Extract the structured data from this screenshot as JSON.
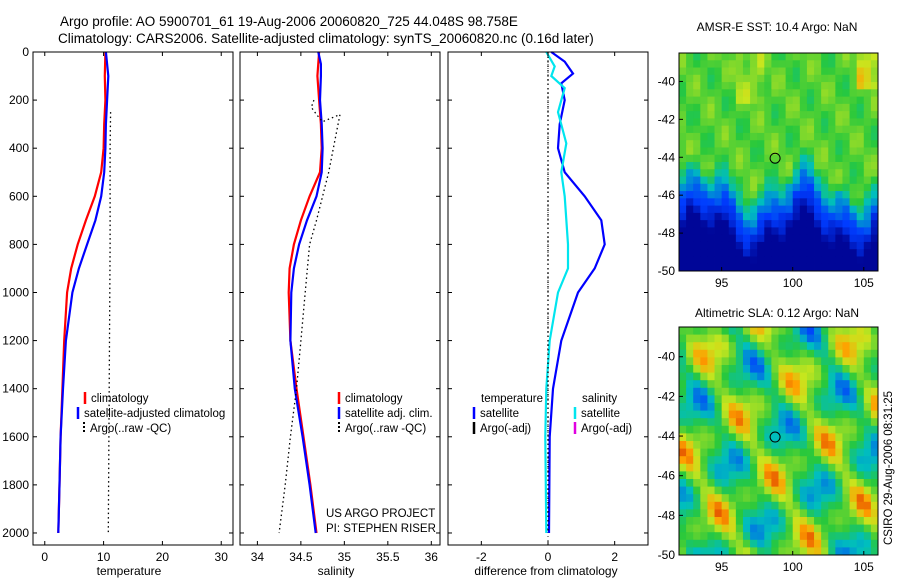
{
  "header": {
    "line1": "Argo profile: AO 5900701_61 19-Aug-2006 20060820_725 44.048S 98.758E",
    "line2": "Climatology: CARS2006. Satellite-adjusted climatology: synTS_20060820.nc (0.16d later)"
  },
  "side_stamp": "CSIRO 29-Aug-2006 08:31:25",
  "colors": {
    "red": "#ff0000",
    "blue": "#0000ff",
    "cyan": "#00e5ee",
    "magenta": "#e000e0",
    "black": "#000000"
  },
  "chart_data": [
    {
      "id": "temperature",
      "type": "line",
      "xlabel": "temperature",
      "xlim": [
        -2,
        32
      ],
      "ylim": [
        2050,
        0
      ],
      "xticks": [
        0,
        10,
        20,
        30
      ],
      "yticks": [
        0,
        200,
        400,
        600,
        800,
        1000,
        1200,
        1400,
        1600,
        1800,
        2000
      ],
      "legend_entries": [
        "climatology",
        "satellite-adjusted climatolog",
        "Argo(..raw -QC)"
      ],
      "series": [
        {
          "name": "climatology",
          "color": "red",
          "style": "solid",
          "points": [
            [
              10.3,
              0
            ],
            [
              10.2,
              100
            ],
            [
              10.3,
              200
            ],
            [
              10.1,
              300
            ],
            [
              10,
              400
            ],
            [
              9.6,
              500
            ],
            [
              8.5,
              600
            ],
            [
              7,
              700
            ],
            [
              5.6,
              800
            ],
            [
              4.5,
              900
            ],
            [
              3.8,
              1000
            ],
            [
              3.3,
              1200
            ],
            [
              3,
              1400
            ],
            [
              2.7,
              1600
            ],
            [
              2.5,
              1800
            ],
            [
              2.3,
              2000
            ]
          ]
        },
        {
          "name": "satellite-adjusted climatolog",
          "color": "blue",
          "style": "solid",
          "points": [
            [
              10.4,
              0
            ],
            [
              10.8,
              100
            ],
            [
              10.6,
              200
            ],
            [
              10.4,
              300
            ],
            [
              10.3,
              400
            ],
            [
              10.1,
              500
            ],
            [
              9.6,
              600
            ],
            [
              8.6,
              700
            ],
            [
              7.2,
              800
            ],
            [
              5.8,
              900
            ],
            [
              4.7,
              1000
            ],
            [
              3.6,
              1200
            ],
            [
              3.1,
              1400
            ],
            [
              2.7,
              1600
            ],
            [
              2.5,
              1800
            ],
            [
              2.3,
              2000
            ]
          ]
        },
        {
          "name": "Argo(..raw -QC)",
          "color": "black",
          "style": "dotted",
          "points": [
            [
              11.2,
              250
            ],
            [
              11.1,
              400
            ],
            [
              11.1,
              800
            ],
            [
              11,
              1200
            ],
            [
              10.9,
              1600
            ],
            [
              10.8,
              2000
            ]
          ]
        }
      ]
    },
    {
      "id": "salinity",
      "type": "line",
      "xlabel": "salinity",
      "xlim": [
        33.8,
        36.1
      ],
      "ylim": [
        2050,
        0
      ],
      "xticks": [
        34,
        34.5,
        35,
        35.5,
        36
      ],
      "yticks": [
        0,
        200,
        400,
        600,
        800,
        1000,
        1200,
        1400,
        1600,
        1800,
        2000
      ],
      "legend_entries": [
        "climatology",
        "satellite adj. clim.",
        "Argo(..raw -QC)"
      ],
      "annotations": [
        "US ARGO PROJECT",
        "PI: STEPHEN RISER"
      ],
      "series": [
        {
          "name": "climatology",
          "color": "red",
          "style": "solid",
          "points": [
            [
              34.71,
              0
            ],
            [
              34.69,
              100
            ],
            [
              34.71,
              200
            ],
            [
              34.73,
              300
            ],
            [
              34.74,
              400
            ],
            [
              34.72,
              500
            ],
            [
              34.6,
              600
            ],
            [
              34.5,
              700
            ],
            [
              34.42,
              800
            ],
            [
              34.37,
              900
            ],
            [
              34.36,
              1000
            ],
            [
              34.38,
              1200
            ],
            [
              34.45,
              1400
            ],
            [
              34.53,
              1600
            ],
            [
              34.61,
              1800
            ],
            [
              34.68,
              2000
            ]
          ]
        },
        {
          "name": "satellite adj. clim.",
          "color": "blue",
          "style": "solid",
          "points": [
            [
              34.7,
              0
            ],
            [
              34.73,
              50
            ],
            [
              34.73,
              100
            ],
            [
              34.72,
              200
            ],
            [
              34.74,
              300
            ],
            [
              34.75,
              400
            ],
            [
              34.74,
              500
            ],
            [
              34.68,
              600
            ],
            [
              34.57,
              700
            ],
            [
              34.48,
              800
            ],
            [
              34.42,
              900
            ],
            [
              34.39,
              1000
            ],
            [
              34.38,
              1200
            ],
            [
              34.43,
              1400
            ],
            [
              34.52,
              1600
            ],
            [
              34.6,
              1800
            ],
            [
              34.67,
              2000
            ]
          ]
        },
        {
          "name": "Argo(..raw -QC)",
          "color": "black",
          "style": "dotted",
          "points": [
            [
              34.65,
              200
            ],
            [
              34.62,
              230
            ],
            [
              34.68,
              260
            ],
            [
              34.75,
              290
            ],
            [
              34.95,
              260
            ],
            [
              34.9,
              350
            ],
            [
              34.82,
              500
            ],
            [
              34.75,
              600
            ],
            [
              34.68,
              700
            ],
            [
              34.6,
              800
            ],
            [
              34.55,
              1000
            ],
            [
              34.5,
              1200
            ],
            [
              34.45,
              1400
            ],
            [
              34.38,
              1600
            ],
            [
              34.32,
              1800
            ],
            [
              34.25,
              2000
            ]
          ]
        }
      ]
    },
    {
      "id": "difference",
      "type": "line",
      "xlabel": "difference from climatology",
      "xlim": [
        -3,
        3
      ],
      "ylim": [
        2050,
        0
      ],
      "xticks": [
        -2,
        0,
        2
      ],
      "yticks": [
        0,
        200,
        400,
        600,
        800,
        1000,
        1200,
        1400,
        1600,
        1800,
        2000
      ],
      "legend_headers": [
        "temperature",
        "salinity"
      ],
      "legend_entries": [
        "satellite",
        "Argo(-adj)",
        "satellite",
        "Argo(-adj)"
      ],
      "series": [
        {
          "name": "satellite",
          "group": "temperature",
          "color": "blue",
          "style": "solid",
          "points": [
            [
              0.1,
              0
            ],
            [
              0.5,
              40
            ],
            [
              0.75,
              90
            ],
            [
              0.4,
              130
            ],
            [
              0.5,
              200
            ],
            [
              0.35,
              300
            ],
            [
              0.3,
              400
            ],
            [
              0.5,
              500
            ],
            [
              1.1,
              600
            ],
            [
              1.6,
              700
            ],
            [
              1.7,
              800
            ],
            [
              1.4,
              900
            ],
            [
              0.9,
              1000
            ],
            [
              0.4,
              1200
            ],
            [
              0.15,
              1400
            ],
            [
              0.05,
              1600
            ],
            [
              0.03,
              2000
            ]
          ]
        },
        {
          "name": "satellite",
          "group": "salinity",
          "color": "cyan",
          "style": "solid",
          "points": [
            [
              -0.05,
              0
            ],
            [
              0.2,
              60
            ],
            [
              0.1,
              100
            ],
            [
              0.5,
              150
            ],
            [
              0.3,
              250
            ],
            [
              0.55,
              380
            ],
            [
              0.4,
              500
            ],
            [
              0.5,
              600
            ],
            [
              0.6,
              800
            ],
            [
              0.6,
              900
            ],
            [
              0.3,
              1000
            ],
            [
              0.05,
              1200
            ],
            [
              -0.05,
              1400
            ],
            [
              -0.08,
              1600
            ],
            [
              -0.05,
              2000
            ]
          ]
        },
        {
          "name": "Argo(-adj)",
          "group": "temperature",
          "color": "black",
          "style": "dotted",
          "points": [
            [
              0,
              0
            ],
            [
              0,
              2000
            ]
          ]
        }
      ]
    },
    {
      "id": "amsr-sst-map",
      "type": "heatmap",
      "title": "AMSR-E SST: 10.4  Argo: NaN",
      "xlim": [
        92,
        106
      ],
      "ylim": [
        -50,
        -38.5
      ],
      "xticks": [
        95,
        100,
        105
      ],
      "yticks": [
        -40,
        -42,
        -44,
        -46,
        -48,
        -50
      ],
      "marker": [
        98.76,
        -44.05
      ]
    },
    {
      "id": "altimetric-sla-map",
      "type": "heatmap",
      "title": "Altimetric SLA: 0.12  Argo: NaN",
      "xlim": [
        92,
        106
      ],
      "ylim": [
        -50,
        -38.5
      ],
      "xticks": [
        95,
        100,
        105
      ],
      "yticks": [
        -40,
        -42,
        -44,
        -46,
        -48,
        -50
      ],
      "marker": [
        98.76,
        -44.05
      ]
    }
  ]
}
